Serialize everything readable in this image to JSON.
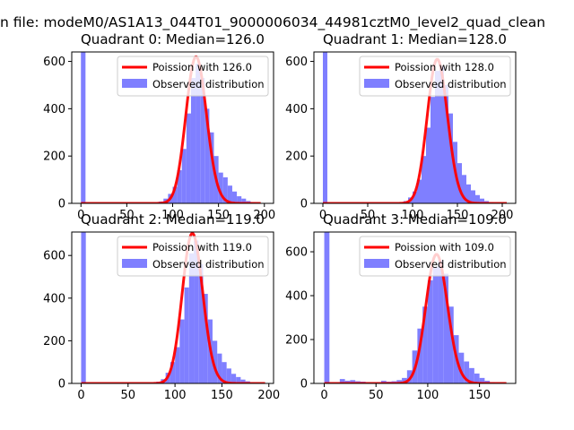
{
  "figure": {
    "suptitle": "n file: modeM0/AS1A13_044T01_9000006034_44981cztM0_level2_quad_clean"
  },
  "colors": {
    "hist": "#7f7fff",
    "poisson": "#ff0000",
    "axes": "#000000",
    "background": "#ffffff"
  },
  "chart_data": [
    {
      "type": "bar",
      "title": "Quadrant 0: Median=126.0",
      "xlim": [
        -10,
        210
      ],
      "ylim": [
        0,
        640
      ],
      "xticks": [
        0,
        50,
        100,
        150,
        200
      ],
      "yticks": [
        0,
        200,
        400,
        600
      ],
      "legend": {
        "placement": "top-right",
        "entries": [
          "Poission with 126.0",
          "Observed distribution"
        ]
      },
      "series": [
        {
          "name": "Poission with 126.0",
          "kind": "line",
          "lambda": 126.0,
          "x_range": [
            0,
            196
          ]
        },
        {
          "name": "Observed distribution",
          "kind": "hist",
          "bin_width": 5,
          "bins": [
            [
              0,
              640
            ],
            [
              85,
              8
            ],
            [
              90,
              20
            ],
            [
              95,
              40
            ],
            [
              100,
              70
            ],
            [
              105,
              140
            ],
            [
              110,
              230
            ],
            [
              115,
              380
            ],
            [
              120,
              530
            ],
            [
              125,
              590
            ],
            [
              130,
              530
            ],
            [
              135,
              400
            ],
            [
              140,
              300
            ],
            [
              145,
              200
            ],
            [
              150,
              130
            ],
            [
              155,
              110
            ],
            [
              160,
              75
            ],
            [
              165,
              50
            ],
            [
              170,
              30
            ],
            [
              175,
              20
            ],
            [
              180,
              10
            ],
            [
              185,
              5
            ],
            [
              190,
              2
            ]
          ]
        }
      ]
    },
    {
      "type": "bar",
      "title": "Quadrant 1: Median=128.0",
      "xlim": [
        -10,
        215
      ],
      "ylim": [
        0,
        640
      ],
      "xticks": [
        0,
        50,
        100,
        150,
        200
      ],
      "yticks": [
        0,
        200,
        400,
        600
      ],
      "legend": {
        "placement": "top-right",
        "entries": [
          "Poission with 128.0",
          "Observed distribution"
        ]
      },
      "series": [
        {
          "name": "Poission with 128.0",
          "kind": "line",
          "lambda": 128.0,
          "x_range": [
            0,
            205
          ]
        },
        {
          "name": "Observed distribution",
          "kind": "hist",
          "bin_width": 5,
          "bins": [
            [
              0,
              640
            ],
            [
              90,
              10
            ],
            [
              95,
              25
            ],
            [
              100,
              50
            ],
            [
              105,
              100
            ],
            [
              110,
              200
            ],
            [
              115,
              320
            ],
            [
              120,
              450
            ],
            [
              125,
              560
            ],
            [
              130,
              580
            ],
            [
              135,
              500
            ],
            [
              140,
              380
            ],
            [
              145,
              260
            ],
            [
              150,
              170
            ],
            [
              155,
              120
            ],
            [
              160,
              80
            ],
            [
              165,
              55
            ],
            [
              170,
              35
            ],
            [
              175,
              20
            ],
            [
              180,
              10
            ],
            [
              185,
              5
            ],
            [
              195,
              2
            ]
          ]
        }
      ]
    },
    {
      "type": "bar",
      "title": "Quadrant 2: Median=119.0",
      "xlim": [
        -10,
        205
      ],
      "ylim": [
        0,
        710
      ],
      "xticks": [
        0,
        50,
        100,
        150,
        200
      ],
      "yticks": [
        0,
        200,
        400,
        600
      ],
      "legend": {
        "placement": "top-right",
        "entries": [
          "Poission with 119.0",
          "Observed distribution"
        ]
      },
      "series": [
        {
          "name": "Poission with 119.0",
          "kind": "line",
          "lambda": 119.0,
          "x_range": [
            0,
            196
          ]
        },
        {
          "name": "Observed distribution",
          "kind": "hist",
          "bin_width": 5,
          "bins": [
            [
              0,
              710
            ],
            [
              80,
              8
            ],
            [
              85,
              20
            ],
            [
              90,
              50
            ],
            [
              95,
              100
            ],
            [
              100,
              170
            ],
            [
              105,
              300
            ],
            [
              110,
              450
            ],
            [
              115,
              610
            ],
            [
              120,
              670
            ],
            [
              125,
              560
            ],
            [
              130,
              420
            ],
            [
              135,
              300
            ],
            [
              140,
              200
            ],
            [
              145,
              140
            ],
            [
              150,
              100
            ],
            [
              155,
              70
            ],
            [
              160,
              45
            ],
            [
              165,
              30
            ],
            [
              170,
              18
            ],
            [
              175,
              10
            ],
            [
              180,
              5
            ],
            [
              185,
              3
            ]
          ]
        }
      ]
    },
    {
      "type": "bar",
      "title": "Quadrant 3: Median=109.0",
      "xlim": [
        -10,
        185
      ],
      "ylim": [
        0,
        690
      ],
      "xticks": [
        0,
        50,
        100,
        150
      ],
      "yticks": [
        0,
        200,
        400,
        600
      ],
      "legend": {
        "placement": "top-right",
        "entries": [
          "Poission with 109.0",
          "Observed distribution"
        ]
      },
      "series": [
        {
          "name": "Poission with 109.0",
          "kind": "line",
          "lambda": 109.0,
          "x_range": [
            0,
            176
          ]
        },
        {
          "name": "Observed distribution",
          "kind": "hist",
          "bin_width": 5,
          "bins": [
            [
              0,
              690
            ],
            [
              15,
              20
            ],
            [
              20,
              12
            ],
            [
              25,
              15
            ],
            [
              30,
              10
            ],
            [
              35,
              8
            ],
            [
              40,
              5
            ],
            [
              45,
              3
            ],
            [
              50,
              5
            ],
            [
              55,
              12
            ],
            [
              60,
              8
            ],
            [
              65,
              10
            ],
            [
              70,
              15
            ],
            [
              75,
              25
            ],
            [
              80,
              60
            ],
            [
              85,
              150
            ],
            [
              90,
              250
            ],
            [
              95,
              350
            ],
            [
              100,
              470
            ],
            [
              105,
              530
            ],
            [
              110,
              560
            ],
            [
              115,
              500
            ],
            [
              120,
              350
            ],
            [
              125,
              220
            ],
            [
              130,
              140
            ],
            [
              135,
              100
            ],
            [
              140,
              70
            ],
            [
              145,
              45
            ],
            [
              150,
              25
            ],
            [
              155,
              12
            ],
            [
              160,
              5
            ]
          ]
        }
      ]
    }
  ]
}
